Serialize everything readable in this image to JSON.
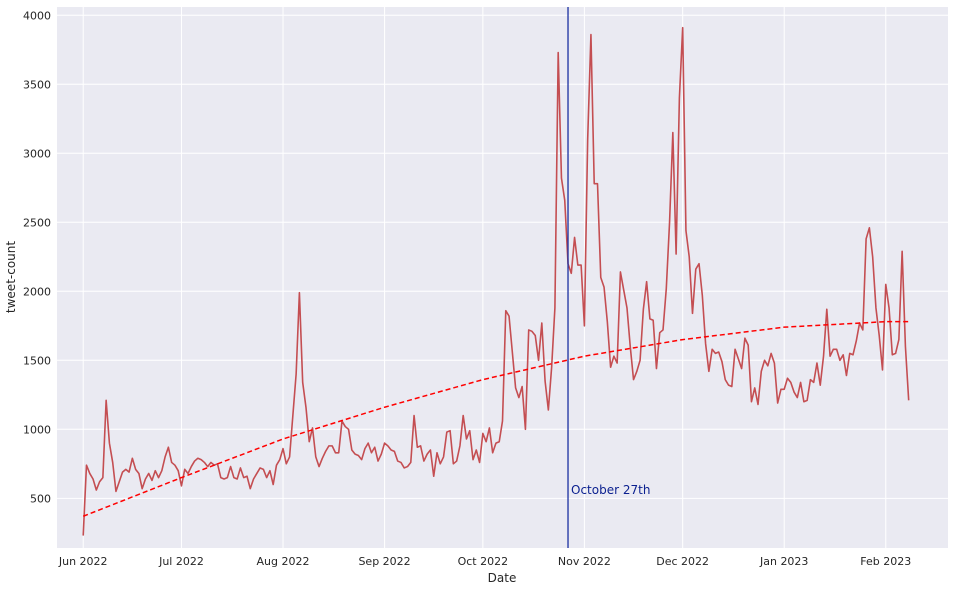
{
  "chart_data": {
    "type": "line",
    "xlabel": "Date",
    "ylabel": "tweet-count",
    "xlim": [
      "2022-05-24",
      "2023-02-20"
    ],
    "ylim": [
      140,
      4060
    ],
    "grid": true,
    "x_ticks": [
      {
        "date": "2022-06-01",
        "label": "Jun 2022"
      },
      {
        "date": "2022-07-01",
        "label": "Jul 2022"
      },
      {
        "date": "2022-08-01",
        "label": "Aug 2022"
      },
      {
        "date": "2022-09-01",
        "label": "Sep 2022"
      },
      {
        "date": "2022-10-01",
        "label": "Oct 2022"
      },
      {
        "date": "2022-11-01",
        "label": "Nov 2022"
      },
      {
        "date": "2022-12-01",
        "label": "Dec 2022"
      },
      {
        "date": "2023-01-01",
        "label": "Jan 2023"
      },
      {
        "date": "2023-02-01",
        "label": "Feb 2023"
      }
    ],
    "y_ticks": [
      500,
      1000,
      1500,
      2000,
      2500,
      3000,
      3500,
      4000
    ],
    "series": [
      {
        "color": "#c44e52",
        "points": [
          [
            "2022-06-01",
            230
          ],
          [
            "2022-06-02",
            740
          ],
          [
            "2022-06-03",
            680
          ],
          [
            "2022-06-04",
            640
          ],
          [
            "2022-06-05",
            560
          ],
          [
            "2022-06-06",
            620
          ],
          [
            "2022-06-07",
            650
          ],
          [
            "2022-06-08",
            1210
          ],
          [
            "2022-06-09",
            900
          ],
          [
            "2022-06-10",
            760
          ],
          [
            "2022-06-11",
            550
          ],
          [
            "2022-06-12",
            620
          ],
          [
            "2022-06-13",
            690
          ],
          [
            "2022-06-14",
            710
          ],
          [
            "2022-06-15",
            690
          ],
          [
            "2022-06-16",
            790
          ],
          [
            "2022-06-17",
            710
          ],
          [
            "2022-06-18",
            680
          ],
          [
            "2022-06-19",
            570
          ],
          [
            "2022-06-20",
            640
          ],
          [
            "2022-06-21",
            680
          ],
          [
            "2022-06-22",
            630
          ],
          [
            "2022-06-23",
            700
          ],
          [
            "2022-06-24",
            650
          ],
          [
            "2022-06-25",
            700
          ],
          [
            "2022-06-26",
            800
          ],
          [
            "2022-06-27",
            870
          ],
          [
            "2022-06-28",
            760
          ],
          [
            "2022-06-29",
            740
          ],
          [
            "2022-06-30",
            700
          ],
          [
            "2022-07-01",
            590
          ],
          [
            "2022-07-02",
            710
          ],
          [
            "2022-07-03",
            680
          ],
          [
            "2022-07-04",
            730
          ],
          [
            "2022-07-05",
            770
          ],
          [
            "2022-07-06",
            790
          ],
          [
            "2022-07-07",
            780
          ],
          [
            "2022-07-08",
            760
          ],
          [
            "2022-07-09",
            730
          ],
          [
            "2022-07-10",
            760
          ],
          [
            "2022-07-11",
            740
          ],
          [
            "2022-07-12",
            750
          ],
          [
            "2022-07-13",
            650
          ],
          [
            "2022-07-14",
            640
          ],
          [
            "2022-07-15",
            650
          ],
          [
            "2022-07-16",
            730
          ],
          [
            "2022-07-17",
            650
          ],
          [
            "2022-07-18",
            640
          ],
          [
            "2022-07-19",
            720
          ],
          [
            "2022-07-20",
            650
          ],
          [
            "2022-07-21",
            660
          ],
          [
            "2022-07-22",
            570
          ],
          [
            "2022-07-23",
            640
          ],
          [
            "2022-07-24",
            680
          ],
          [
            "2022-07-25",
            720
          ],
          [
            "2022-07-26",
            710
          ],
          [
            "2022-07-27",
            650
          ],
          [
            "2022-07-28",
            700
          ],
          [
            "2022-07-29",
            600
          ],
          [
            "2022-07-30",
            740
          ],
          [
            "2022-07-31",
            780
          ],
          [
            "2022-08-01",
            860
          ],
          [
            "2022-08-02",
            750
          ],
          [
            "2022-08-03",
            800
          ],
          [
            "2022-08-04",
            1100
          ],
          [
            "2022-08-05",
            1400
          ],
          [
            "2022-08-06",
            1990
          ],
          [
            "2022-08-07",
            1340
          ],
          [
            "2022-08-08",
            1160
          ],
          [
            "2022-08-09",
            910
          ],
          [
            "2022-08-10",
            1010
          ],
          [
            "2022-08-11",
            800
          ],
          [
            "2022-08-12",
            730
          ],
          [
            "2022-08-13",
            790
          ],
          [
            "2022-08-14",
            840
          ],
          [
            "2022-08-15",
            880
          ],
          [
            "2022-08-16",
            880
          ],
          [
            "2022-08-17",
            830
          ],
          [
            "2022-08-18",
            830
          ],
          [
            "2022-08-19",
            1060
          ],
          [
            "2022-08-20",
            1020
          ],
          [
            "2022-08-21",
            1000
          ],
          [
            "2022-08-22",
            850
          ],
          [
            "2022-08-23",
            820
          ],
          [
            "2022-08-24",
            810
          ],
          [
            "2022-08-25",
            780
          ],
          [
            "2022-08-26",
            860
          ],
          [
            "2022-08-27",
            900
          ],
          [
            "2022-08-28",
            830
          ],
          [
            "2022-08-29",
            870
          ],
          [
            "2022-08-30",
            770
          ],
          [
            "2022-08-31",
            820
          ],
          [
            "2022-09-01",
            900
          ],
          [
            "2022-09-02",
            880
          ],
          [
            "2022-09-03",
            850
          ],
          [
            "2022-09-04",
            840
          ],
          [
            "2022-09-05",
            770
          ],
          [
            "2022-09-06",
            760
          ],
          [
            "2022-09-07",
            720
          ],
          [
            "2022-09-08",
            730
          ],
          [
            "2022-09-09",
            760
          ],
          [
            "2022-09-10",
            1100
          ],
          [
            "2022-09-11",
            870
          ],
          [
            "2022-09-12",
            880
          ],
          [
            "2022-09-13",
            770
          ],
          [
            "2022-09-14",
            820
          ],
          [
            "2022-09-15",
            850
          ],
          [
            "2022-09-16",
            660
          ],
          [
            "2022-09-17",
            830
          ],
          [
            "2022-09-18",
            750
          ],
          [
            "2022-09-19",
            800
          ],
          [
            "2022-09-20",
            980
          ],
          [
            "2022-09-21",
            990
          ],
          [
            "2022-09-22",
            750
          ],
          [
            "2022-09-23",
            770
          ],
          [
            "2022-09-24",
            880
          ],
          [
            "2022-09-25",
            1100
          ],
          [
            "2022-09-26",
            930
          ],
          [
            "2022-09-27",
            990
          ],
          [
            "2022-09-28",
            780
          ],
          [
            "2022-09-29",
            850
          ],
          [
            "2022-09-30",
            760
          ],
          [
            "2022-10-01",
            970
          ],
          [
            "2022-10-02",
            910
          ],
          [
            "2022-10-03",
            1010
          ],
          [
            "2022-10-04",
            830
          ],
          [
            "2022-10-05",
            900
          ],
          [
            "2022-10-06",
            910
          ],
          [
            "2022-10-07",
            1060
          ],
          [
            "2022-10-08",
            1860
          ],
          [
            "2022-10-09",
            1820
          ],
          [
            "2022-10-10",
            1560
          ],
          [
            "2022-10-11",
            1300
          ],
          [
            "2022-10-12",
            1230
          ],
          [
            "2022-10-13",
            1310
          ],
          [
            "2022-10-14",
            1000
          ],
          [
            "2022-10-15",
            1720
          ],
          [
            "2022-10-16",
            1710
          ],
          [
            "2022-10-17",
            1680
          ],
          [
            "2022-10-18",
            1500
          ],
          [
            "2022-10-19",
            1770
          ],
          [
            "2022-10-20",
            1350
          ],
          [
            "2022-10-21",
            1140
          ],
          [
            "2022-10-22",
            1450
          ],
          [
            "2022-10-23",
            1880
          ],
          [
            "2022-10-24",
            3730
          ],
          [
            "2022-10-25",
            2820
          ],
          [
            "2022-10-26",
            2660
          ],
          [
            "2022-10-27",
            2200
          ],
          [
            "2022-10-28",
            2130
          ],
          [
            "2022-10-29",
            2390
          ],
          [
            "2022-10-30",
            2190
          ],
          [
            "2022-10-31",
            2190
          ],
          [
            "2022-11-01",
            1750
          ],
          [
            "2022-11-02",
            3100
          ],
          [
            "2022-11-03",
            3860
          ],
          [
            "2022-11-04",
            2780
          ],
          [
            "2022-11-05",
            2780
          ],
          [
            "2022-11-06",
            2100
          ],
          [
            "2022-11-07",
            2030
          ],
          [
            "2022-11-08",
            1780
          ],
          [
            "2022-11-09",
            1450
          ],
          [
            "2022-11-10",
            1530
          ],
          [
            "2022-11-11",
            1480
          ],
          [
            "2022-11-12",
            2140
          ],
          [
            "2022-11-13",
            2010
          ],
          [
            "2022-11-14",
            1880
          ],
          [
            "2022-11-15",
            1600
          ],
          [
            "2022-11-16",
            1360
          ],
          [
            "2022-11-17",
            1420
          ],
          [
            "2022-11-18",
            1500
          ],
          [
            "2022-11-19",
            1870
          ],
          [
            "2022-11-20",
            2070
          ],
          [
            "2022-11-21",
            1800
          ],
          [
            "2022-11-22",
            1790
          ],
          [
            "2022-11-23",
            1440
          ],
          [
            "2022-11-24",
            1700
          ],
          [
            "2022-11-25",
            1720
          ],
          [
            "2022-11-26",
            2020
          ],
          [
            "2022-11-27",
            2500
          ],
          [
            "2022-11-28",
            3150
          ],
          [
            "2022-11-29",
            2270
          ],
          [
            "2022-11-30",
            3400
          ],
          [
            "2022-12-01",
            3910
          ],
          [
            "2022-12-02",
            2440
          ],
          [
            "2022-12-03",
            2250
          ],
          [
            "2022-12-04",
            1840
          ],
          [
            "2022-12-05",
            2160
          ],
          [
            "2022-12-06",
            2200
          ],
          [
            "2022-12-07",
            1970
          ],
          [
            "2022-12-08",
            1620
          ],
          [
            "2022-12-09",
            1420
          ],
          [
            "2022-12-10",
            1580
          ],
          [
            "2022-12-11",
            1550
          ],
          [
            "2022-12-12",
            1560
          ],
          [
            "2022-12-13",
            1490
          ],
          [
            "2022-12-14",
            1360
          ],
          [
            "2022-12-15",
            1320
          ],
          [
            "2022-12-16",
            1310
          ],
          [
            "2022-12-17",
            1580
          ],
          [
            "2022-12-18",
            1510
          ],
          [
            "2022-12-19",
            1440
          ],
          [
            "2022-12-20",
            1660
          ],
          [
            "2022-12-21",
            1610
          ],
          [
            "2022-12-22",
            1200
          ],
          [
            "2022-12-23",
            1300
          ],
          [
            "2022-12-24",
            1180
          ],
          [
            "2022-12-25",
            1420
          ],
          [
            "2022-12-26",
            1500
          ],
          [
            "2022-12-27",
            1460
          ],
          [
            "2022-12-28",
            1550
          ],
          [
            "2022-12-29",
            1480
          ],
          [
            "2022-12-30",
            1190
          ],
          [
            "2022-12-31",
            1290
          ],
          [
            "2023-01-01",
            1290
          ],
          [
            "2023-01-02",
            1370
          ],
          [
            "2023-01-03",
            1340
          ],
          [
            "2023-01-04",
            1270
          ],
          [
            "2023-01-05",
            1230
          ],
          [
            "2023-01-06",
            1340
          ],
          [
            "2023-01-07",
            1200
          ],
          [
            "2023-01-08",
            1210
          ],
          [
            "2023-01-09",
            1360
          ],
          [
            "2023-01-10",
            1340
          ],
          [
            "2023-01-11",
            1480
          ],
          [
            "2023-01-12",
            1320
          ],
          [
            "2023-01-13",
            1530
          ],
          [
            "2023-01-14",
            1870
          ],
          [
            "2023-01-15",
            1530
          ],
          [
            "2023-01-16",
            1580
          ],
          [
            "2023-01-17",
            1580
          ],
          [
            "2023-01-18",
            1500
          ],
          [
            "2023-01-19",
            1540
          ],
          [
            "2023-01-20",
            1390
          ],
          [
            "2023-01-21",
            1550
          ],
          [
            "2023-01-22",
            1540
          ],
          [
            "2023-01-23",
            1640
          ],
          [
            "2023-01-24",
            1770
          ],
          [
            "2023-01-25",
            1720
          ],
          [
            "2023-01-26",
            2380
          ],
          [
            "2023-01-27",
            2460
          ],
          [
            "2023-01-28",
            2250
          ],
          [
            "2023-01-29",
            1880
          ],
          [
            "2023-01-30",
            1680
          ],
          [
            "2023-01-31",
            1430
          ],
          [
            "2023-02-01",
            2050
          ],
          [
            "2023-02-02",
            1880
          ],
          [
            "2023-02-03",
            1540
          ],
          [
            "2023-02-04",
            1550
          ],
          [
            "2023-02-05",
            1650
          ],
          [
            "2023-02-06",
            2290
          ],
          [
            "2023-02-07",
            1600
          ],
          [
            "2023-02-08",
            1210
          ]
        ]
      },
      {
        "style": "dashed",
        "color": "#ff0000",
        "points": [
          [
            "2022-06-01",
            370
          ],
          [
            "2022-07-01",
            650
          ],
          [
            "2022-08-01",
            930
          ],
          [
            "2022-09-01",
            1160
          ],
          [
            "2022-10-01",
            1360
          ],
          [
            "2022-11-01",
            1530
          ],
          [
            "2022-12-01",
            1650
          ],
          [
            "2023-01-01",
            1740
          ],
          [
            "2023-02-01",
            1780
          ],
          [
            "2023-02-08",
            1780
          ]
        ]
      }
    ],
    "annotations": [
      {
        "type": "vline",
        "x": "2022-10-27",
        "color": "#1a2fa0"
      },
      {
        "type": "text",
        "x": "2022-10-27",
        "y": 560,
        "text": "October 27th",
        "color": "#0a1f8f"
      }
    ]
  }
}
